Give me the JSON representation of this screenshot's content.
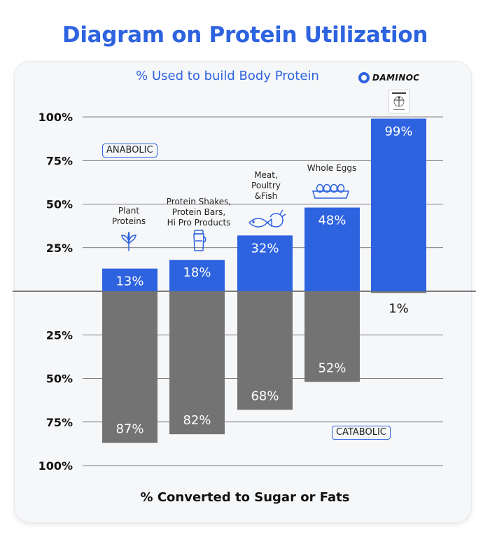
{
  "title": "Diagram on Protein Utilization",
  "brand": "DAMINOC",
  "colors": {
    "positive": "#2e63e0",
    "negative": "#737373",
    "title": "#2e63e0"
  },
  "chart_data": {
    "type": "bar",
    "title": "Diagram on Protein Utilization",
    "positive_axis_label": "% Used to build Body Protein",
    "negative_axis_label": "% Converted to Sugar or Fats",
    "anabolic_tag": "ANABOLIC",
    "catabolic_tag": "CATABOLIC",
    "yticks_positive": [
      "100%",
      "75%",
      "50%",
      "25%"
    ],
    "yticks_negative": [
      "25%",
      "50%",
      "75%",
      "100%"
    ],
    "ylim": [
      -100,
      100
    ],
    "grid": true,
    "categories": [
      {
        "label": [
          "Plant",
          "Proteins"
        ],
        "icon": "plant-sprout-icon"
      },
      {
        "label": [
          "Protein Shakes,",
          "Protein Bars,",
          "Hi Pro Products"
        ],
        "icon": "shaker-bottle-icon"
      },
      {
        "label": [
          "Meat,",
          "Poultry",
          "&Fish"
        ],
        "icon": "fish-and-poultry-icon"
      },
      {
        "label": [
          "Whole Eggs"
        ],
        "icon": "egg-carton-icon"
      },
      {
        "label": [],
        "icon": "brand-thumbnail-icon"
      }
    ],
    "series": [
      {
        "name": "Used to build Body Protein",
        "values": [
          13,
          18,
          32,
          48,
          99
        ],
        "labels": [
          "13%",
          "18%",
          "32%",
          "48%",
          "99%"
        ]
      },
      {
        "name": "Converted to Sugar or Fats",
        "values": [
          87,
          82,
          68,
          52,
          1
        ],
        "labels": [
          "87%",
          "82%",
          "68%",
          "52%",
          "1%"
        ]
      }
    ]
  }
}
